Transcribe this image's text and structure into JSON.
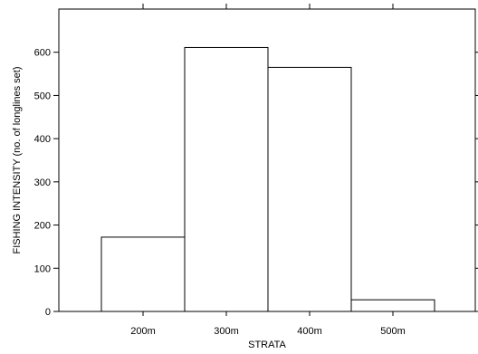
{
  "chart_data": {
    "type": "bar",
    "categories": [
      "200m",
      "300m",
      "400m",
      "500m"
    ],
    "values": [
      172,
      611,
      565,
      27
    ],
    "title": "",
    "xlabel": "STRATA",
    "ylabel": "FISHING INTENSITY (no. of longlines set)",
    "ylim": [
      0,
      700
    ],
    "yticks": [
      0,
      100,
      200,
      300,
      400,
      500,
      600
    ],
    "grid": false,
    "bar_fill": "#ffffff",
    "bar_stroke": "#000000"
  }
}
